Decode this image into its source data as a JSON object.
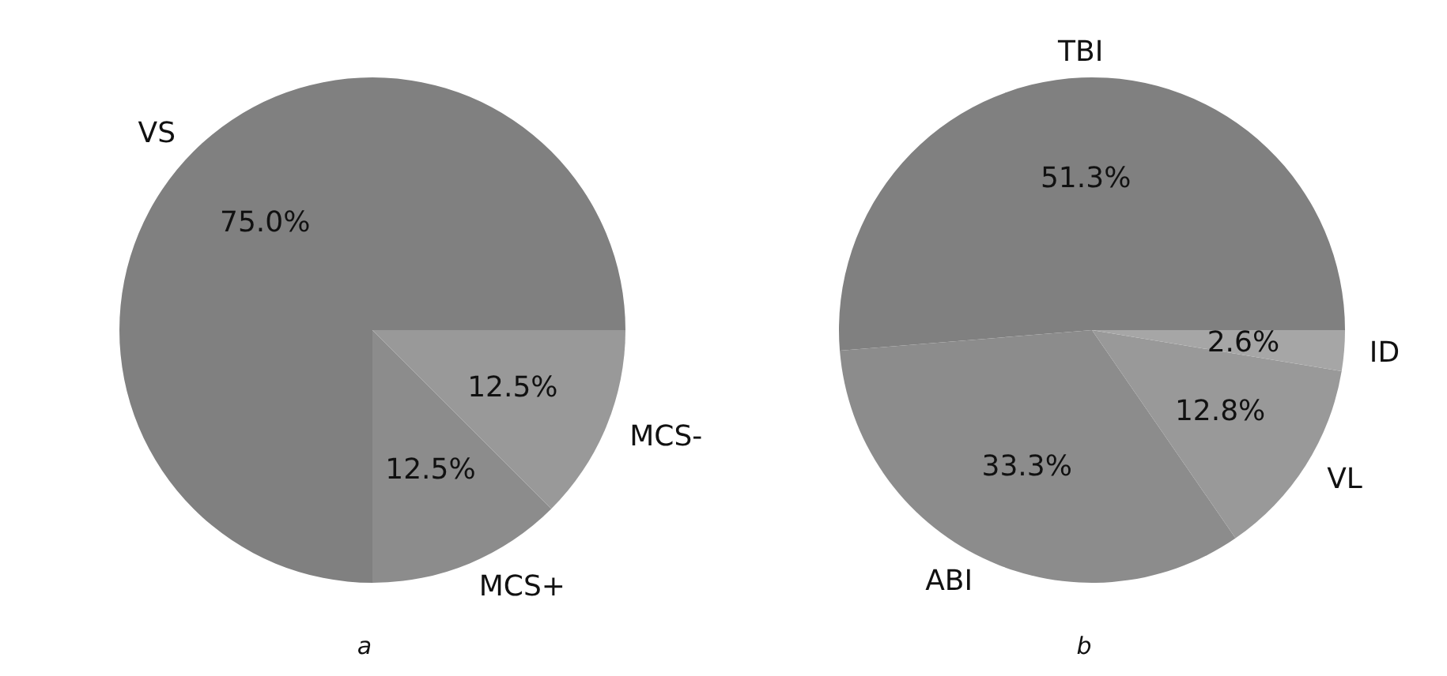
{
  "chart_data": [
    {
      "type": "pie",
      "categories": [
        "VS",
        "MCS+",
        "MCS-"
      ],
      "values": [
        75.0,
        12.5,
        12.5
      ],
      "value_labels": [
        "75.0%",
        "12.5%",
        "12.5%"
      ],
      "colors": [
        "#808080",
        "#8c8c8c",
        "#999999"
      ],
      "annotations": [
        "a"
      ],
      "legend": false
    },
    {
      "type": "pie",
      "categories": [
        "TBI",
        "ABI",
        "VL",
        "ID"
      ],
      "values": [
        51.3,
        33.3,
        12.8,
        2.6
      ],
      "value_labels": [
        "51.3%",
        "33.3%",
        "12.8%",
        "2.6%"
      ],
      "colors": [
        "#808080",
        "#8c8c8c",
        "#999999",
        "#a6a6a6"
      ],
      "annotations": [
        "b"
      ],
      "legend": false
    }
  ]
}
